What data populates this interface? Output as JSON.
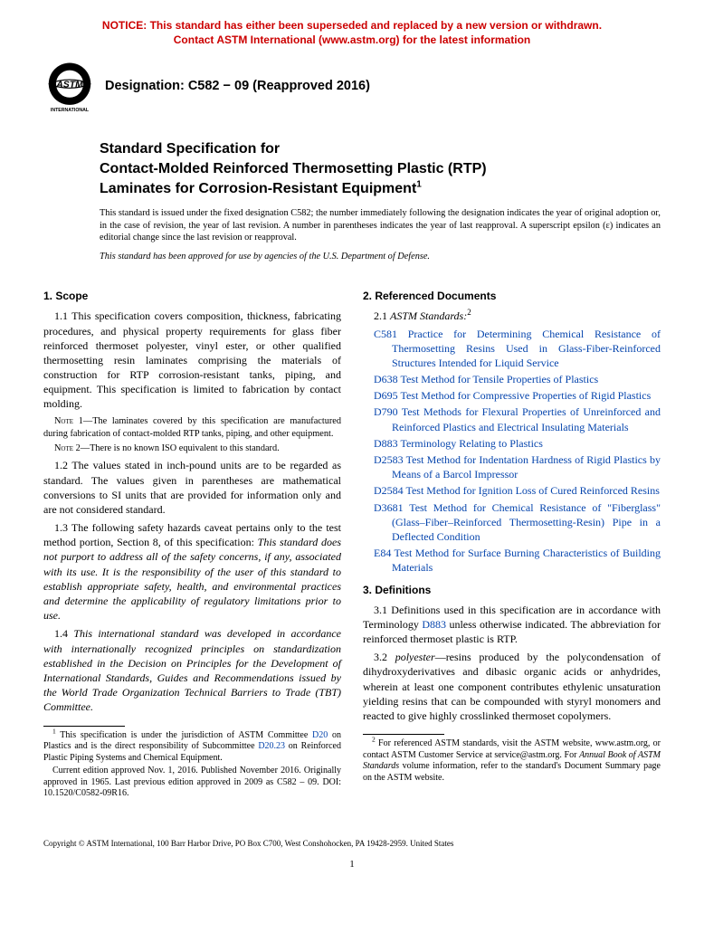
{
  "notice": {
    "line1": "NOTICE: This standard has either been superseded and replaced by a new version or withdrawn.",
    "line2": "Contact ASTM International (www.astm.org) for the latest information",
    "color": "#cc0000"
  },
  "logo": {
    "top_text": "INTERNATIONAL",
    "letters": "ASTM"
  },
  "designation": "Designation: C582 − 09 (Reapproved 2016)",
  "title": {
    "l1": "Standard Specification for",
    "l2": "Contact-Molded Reinforced Thermosetting Plastic (RTP)",
    "l3": "Laminates for Corrosion-Resistant Equipment",
    "sup": "1"
  },
  "intro": "This standard is issued under the fixed designation C582; the number immediately following the designation indicates the year of original adoption or, in the case of revision, the year of last revision. A number in parentheses indicates the year of last reapproval. A superscript epsilon (ε) indicates an editorial change since the last revision or reapproval.",
  "intro_italic": "This standard has been approved for use by agencies of the U.S. Department of Defense.",
  "left": {
    "scope_head": "1. Scope",
    "p1_1": "1.1 This specification covers composition, thickness, fabricating procedures, and physical property requirements for glass fiber reinforced thermoset polyester, vinyl ester, or other qualified thermosetting resin laminates comprising the materials of construction for RTP corrosion-resistant tanks, piping, and equipment. This specification is limited to fabrication by contact molding.",
    "note1_label": "Note 1",
    "note1": "—The laminates covered by this specification are manufactured during fabrication of contact-molded RTP tanks, piping, and other equipment.",
    "note2_label": "Note 2",
    "note2": "—There is no known ISO equivalent to this standard.",
    "p1_2": "1.2 The values stated in inch-pound units are to be regarded as standard. The values given in parentheses are mathematical conversions to SI units that are provided for information only and are not considered standard.",
    "p1_3a": "1.3 The following safety hazards caveat pertains only to the test method portion, Section 8, of this specification: ",
    "p1_3b": "This standard does not purport to address all of the safety concerns, if any, associated with its use. It is the responsibility of the user of this standard to establish appropriate safety, health, and environmental practices and determine the applicability of regulatory limitations prior to use.",
    "p1_4a": "1.4 ",
    "p1_4b": "This international standard was developed in accordance with internationally recognized principles on standardization established in the Decision on Principles for the Development of International Standards, Guides and Recommendations issued by the World Trade Organization Technical Barriers to Trade (TBT) Committee.",
    "fn1a": " This specification is under the jurisdiction of ASTM Committee ",
    "fn1_link1": "D20",
    "fn1b": " on Plastics and is the direct responsibility of Subcommittee ",
    "fn1_link2": "D20.23",
    "fn1c": " on Reinforced Plastic Piping Systems and Chemical Equipment.",
    "fn1d": "Current edition approved Nov. 1, 2016. Published November 2016. Originally approved in 1965. Last previous edition approved in 2009 as C582 – 09. DOI: 10.1520/C0582-09R16."
  },
  "right": {
    "ref_head": "2. Referenced Documents",
    "astm_std_label": "2.1 ",
    "astm_std_italic": "ASTM Standards:",
    "astm_sup": "2",
    "refs": [
      {
        "code": "C581",
        "title": "Practice for Determining Chemical Resistance of Thermosetting Resins Used in Glass-Fiber-Reinforced Structures Intended for Liquid Service"
      },
      {
        "code": "D638",
        "title": "Test Method for Tensile Properties of Plastics"
      },
      {
        "code": "D695",
        "title": "Test Method for Compressive Properties of Rigid Plastics"
      },
      {
        "code": "D790",
        "title": "Test Methods for Flexural Properties of Unreinforced and Reinforced Plastics and Electrical Insulating Materials"
      },
      {
        "code": "D883",
        "title": "Terminology Relating to Plastics"
      },
      {
        "code": "D2583",
        "title": "Test Method for Indentation Hardness of Rigid Plastics by Means of a Barcol Impressor"
      },
      {
        "code": "D2584",
        "title": "Test Method for Ignition Loss of Cured Reinforced Resins"
      },
      {
        "code": "D3681",
        "title": "Test Method for Chemical Resistance of \"Fiberglass\" (Glass–Fiber–Reinforced Thermosetting-Resin) Pipe in a Deflected Condition"
      },
      {
        "code": "E84",
        "title": "Test Method for Surface Burning Characteristics of Building Materials"
      }
    ],
    "def_head": "3. Definitions",
    "p3_1a": "3.1 Definitions used in this specification are in accordance with Terminology ",
    "p3_1_link": "D883",
    "p3_1b": " unless otherwise indicated. The abbreviation for reinforced thermoset plastic is RTP.",
    "p3_2a": "3.2 ",
    "p3_2_term": "polyester",
    "p3_2b": "—resins produced by the polycondensation of dihydroxyderivatives and dibasic organic acids or anhydrides, wherein at least one component contributes ethylenic unsaturation yielding resins that can be compounded with styryl monomers and reacted to give highly crosslinked thermoset copolymers.",
    "fn2a": " For referenced ASTM standards, visit the ASTM website, www.astm.org, or contact ASTM Customer Service at service@astm.org. For ",
    "fn2_it": "Annual Book of ASTM Standards",
    "fn2b": " volume information, refer to the standard's Document Summary page on the ASTM website."
  },
  "copyright": "Copyright © ASTM International, 100 Barr Harbor Drive, PO Box C700, West Conshohocken, PA 19428-2959. United States",
  "pagenum": "1"
}
